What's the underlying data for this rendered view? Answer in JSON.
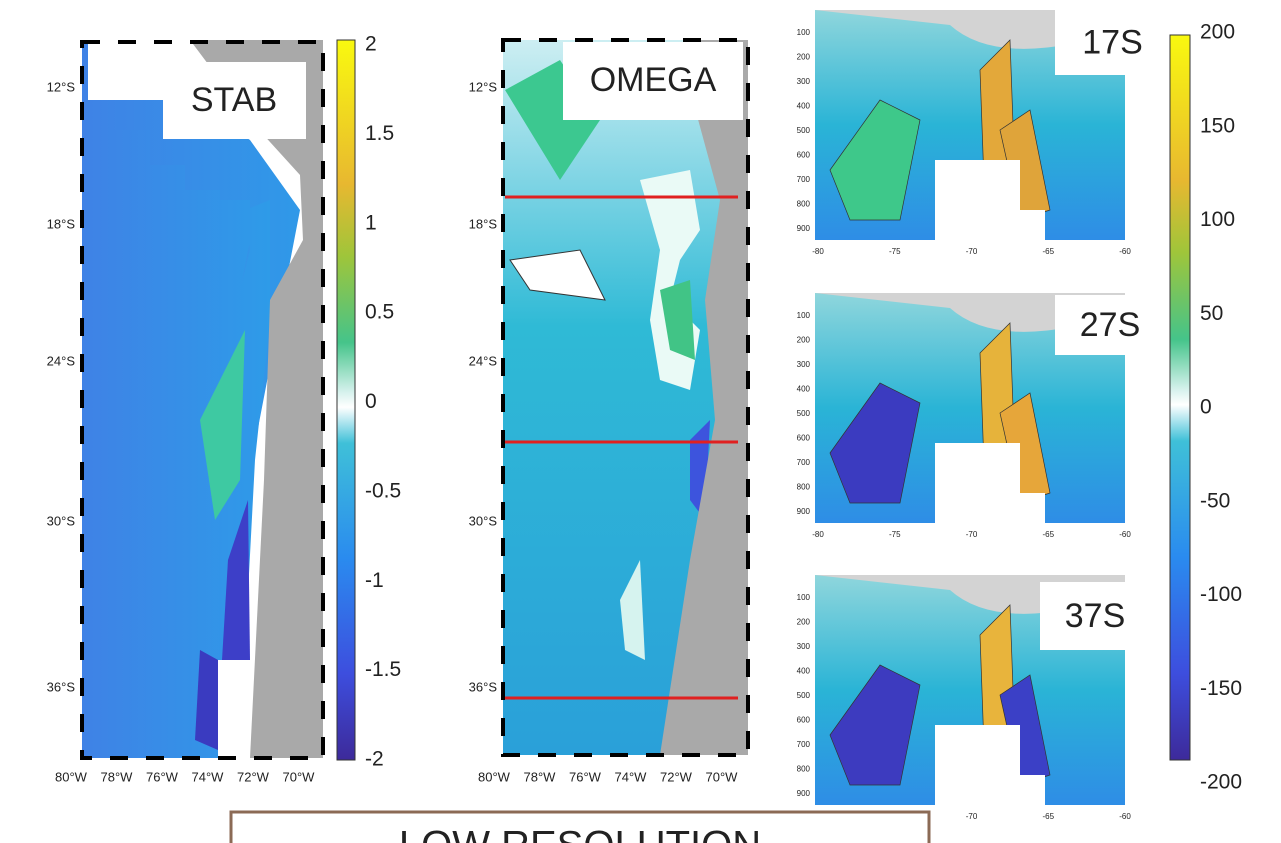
{
  "panels": [
    {
      "label": "STAB",
      "lat_labels": [
        "12°S",
        "18°S",
        "24°S",
        "30°S",
        "36°S"
      ],
      "lon_labels": [
        "80°W",
        "78°W",
        "76°W",
        "74°W",
        "72°W",
        "70°W"
      ]
    },
    {
      "label": "OMEGA",
      "lat_labels": [
        "12°S",
        "18°S",
        "24°S",
        "30°S",
        "36°S"
      ],
      "lon_labels": [
        "80°W",
        "78°W",
        "76°W",
        "74°W",
        "72°W",
        "70°W"
      ]
    }
  ],
  "colorbars": [
    {
      "ticks": [
        2,
        1.5,
        1,
        0.5,
        0,
        -0.5,
        -1,
        -1.5,
        -2
      ]
    },
    {
      "ticks": [
        200,
        150,
        100,
        50,
        0,
        -50,
        -100,
        -150,
        -200
      ]
    }
  ],
  "sections": [
    {
      "label": "17S",
      "depth_ticks": [
        100,
        200,
        300,
        400,
        500,
        600,
        700,
        800,
        900
      ],
      "lon_ticks": [
        -80,
        -75,
        -70,
        -65,
        -60
      ]
    },
    {
      "label": "27S",
      "depth_ticks": [
        100,
        200,
        300,
        400,
        500,
        600,
        700,
        800,
        900
      ],
      "lon_ticks": [
        -80,
        -75,
        -70,
        -65,
        -60
      ]
    },
    {
      "label": "37S",
      "depth_ticks": [
        100,
        200,
        300,
        400,
        500,
        600,
        700,
        800,
        900
      ],
      "lon_ticks": [
        -70,
        -65,
        -60
      ]
    }
  ],
  "footer": {
    "text": "LOW RESOLUTION"
  }
}
